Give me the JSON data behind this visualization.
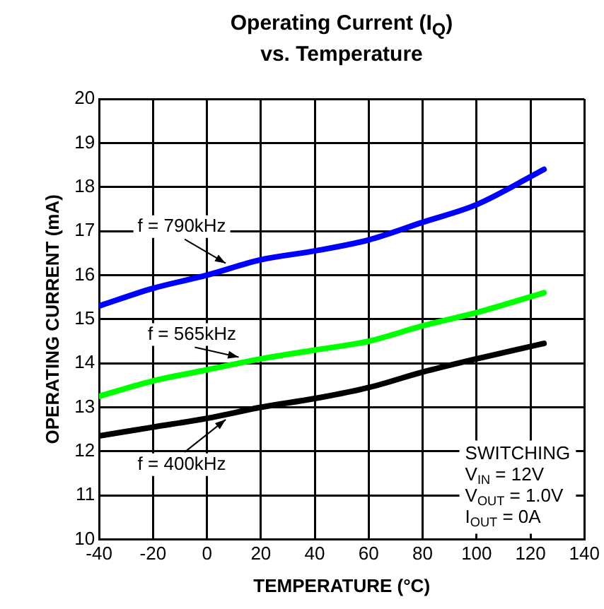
{
  "chart_data": {
    "type": "line",
    "title": "Operating Current (I$_{Q}$)\nvs. Temperature",
    "xlabel": "TEMPERATURE (°C)",
    "ylabel": "OPERATING CURRENT (mA)",
    "x": [
      -40,
      -20,
      0,
      20,
      40,
      60,
      80,
      100,
      125
    ],
    "series": [
      {
        "name": "f = 790kHz",
        "color": "#0000ff",
        "values": [
          15.3,
          15.7,
          16.0,
          16.35,
          16.55,
          16.8,
          17.2,
          17.6,
          18.4
        ]
      },
      {
        "name": "f = 565kHz",
        "color": "#00ff00",
        "values": [
          13.25,
          13.6,
          13.85,
          14.1,
          14.3,
          14.5,
          14.85,
          15.15,
          15.6
        ]
      },
      {
        "name": "f = 400kHz",
        "color": "#000000",
        "values": [
          12.35,
          12.55,
          12.75,
          13.0,
          13.2,
          13.45,
          13.8,
          14.1,
          14.45
        ]
      }
    ],
    "xlim": [
      -40,
      140
    ],
    "xticks": [
      -40,
      -20,
      0,
      20,
      40,
      60,
      80,
      100,
      120,
      140
    ],
    "ylim": [
      10,
      20
    ],
    "yticks": [
      10,
      11,
      12,
      13,
      14,
      15,
      16,
      17,
      18,
      19,
      20
    ],
    "grid": true,
    "marker": "none",
    "line_style": "solid",
    "annotations": [
      "SWITCHING",
      "V$_{IN}$ = 12V",
      "V$_{OUT}$ = 1.0V",
      "I$_{OUT}$ = 0A"
    ]
  }
}
